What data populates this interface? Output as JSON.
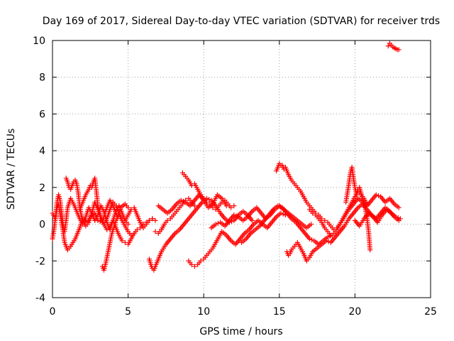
{
  "chart_data": {
    "type": "scatter",
    "title": "Day 169 of 2017, Sidereal Day-to-day VTEC variation (SDTVAR) for receiver trds",
    "xlabel": "GPS time / hours",
    "ylabel": "SDTVAR / TECUs",
    "xlim": [
      0,
      25
    ],
    "ylim": [
      -4,
      10
    ],
    "xticks": [
      0,
      5,
      10,
      15,
      20,
      25
    ],
    "yticks": [
      -4,
      -2,
      0,
      2,
      4,
      6,
      8,
      10
    ],
    "xtick_labels": [
      "0",
      "5",
      "10",
      "15",
      "20",
      "25"
    ],
    "ytick_labels": [
      "-4",
      "-2",
      "0",
      "2",
      "4",
      "6",
      "8",
      "10"
    ],
    "grid": true,
    "marker": "plus",
    "color": "#ff0000",
    "series": [
      {
        "name": "s1",
        "x": [
          0.0,
          0.2,
          0.3,
          0.4,
          0.5,
          0.6,
          0.7,
          0.8,
          1.0,
          1.2,
          1.5,
          1.8,
          2.0,
          2.3,
          2.5,
          2.8,
          3.0,
          3.3,
          3.5,
          3.8,
          4.0,
          4.3,
          4.5,
          4.8,
          5.0
        ],
        "y": [
          0.6,
          0.3,
          0.9,
          1.1,
          0.6,
          0.1,
          -0.4,
          -1.0,
          -1.4,
          -1.2,
          -0.8,
          -0.2,
          0.3,
          0.1,
          0.4,
          0.6,
          0.2,
          0.1,
          0.7,
          1.3,
          1.0,
          0.4,
          0.9,
          1.1,
          0.9
        ]
      },
      {
        "name": "s2",
        "x": [
          0.0,
          0.1,
          0.2,
          0.3,
          0.4,
          0.5,
          0.6,
          0.7,
          0.8,
          0.9,
          1.0,
          1.2,
          1.4,
          1.6,
          1.8,
          2.0,
          2.2,
          2.4,
          2.6,
          2.8,
          3.0,
          3.2,
          3.4,
          3.6,
          3.8,
          4.0,
          4.2,
          4.4,
          4.6,
          4.8,
          5.0
        ],
        "y": [
          -0.8,
          -0.3,
          0.4,
          1.2,
          1.6,
          1.3,
          0.6,
          0.0,
          -0.4,
          0.2,
          0.9,
          1.4,
          1.1,
          0.7,
          0.3,
          0.0,
          0.4,
          0.9,
          0.6,
          0.2,
          0.5,
          1.0,
          0.7,
          0.1,
          -0.3,
          0.2,
          0.7,
          1.0,
          0.6,
          0.2,
          0.0
        ]
      },
      {
        "name": "s3",
        "x": [
          0.9,
          1.0,
          1.1,
          1.2,
          1.3,
          1.4,
          1.5,
          1.6,
          1.7,
          1.8,
          1.9,
          2.0,
          2.2,
          2.4,
          2.6,
          2.8,
          3.0,
          3.2,
          3.4,
          3.6,
          3.8,
          4.0,
          4.2,
          4.4,
          4.6,
          4.8,
          5.0,
          5.2,
          5.4
        ],
        "y": [
          2.5,
          2.3,
          2.0,
          1.9,
          2.1,
          2.3,
          2.4,
          2.2,
          1.7,
          1.0,
          0.5,
          0.2,
          -0.1,
          0.1,
          0.6,
          1.2,
          0.8,
          0.3,
          0.0,
          -0.3,
          -0.1,
          0.2,
          -0.2,
          -0.6,
          -0.9,
          -1.0,
          -1.1,
          -0.8,
          -0.5
        ]
      },
      {
        "name": "s4",
        "x": [
          1.8,
          2.0,
          2.2,
          2.4,
          2.5,
          2.6,
          2.7,
          2.8,
          2.9,
          3.0,
          3.2,
          3.4,
          3.6,
          3.8,
          4.0,
          4.2,
          4.4,
          4.6,
          4.8,
          5.0,
          5.2,
          5.4,
          5.6,
          5.8,
          6.0,
          6.2,
          6.4,
          6.6,
          6.8
        ],
        "y": [
          0.8,
          1.2,
          1.6,
          1.9,
          2.1,
          2.0,
          2.3,
          2.5,
          1.8,
          1.0,
          0.4,
          0.0,
          0.3,
          0.8,
          1.2,
          1.0,
          0.6,
          0.3,
          0.2,
          0.5,
          0.8,
          0.9,
          0.5,
          0.1,
          -0.2,
          0.0,
          0.2,
          0.3,
          0.2
        ]
      },
      {
        "name": "s5",
        "x": [
          3.3,
          3.4,
          3.5,
          3.6,
          3.7,
          3.8,
          3.9,
          4.0,
          4.1,
          4.2,
          4.4,
          4.6,
          4.8,
          5.0,
          5.2,
          5.4,
          5.6,
          5.8,
          6.0,
          6.2,
          6.4,
          6.6
        ],
        "y": [
          -2.3,
          -2.5,
          -2.2,
          -1.8,
          -1.4,
          -1.0,
          -0.6,
          -0.3,
          -0.1,
          0.2,
          0.5,
          0.2,
          -0.1,
          -0.4,
          -0.6,
          -0.5,
          -0.3,
          -0.2,
          0.0,
          0.1,
          0.2,
          0.3
        ]
      },
      {
        "name": "s6",
        "x": [
          6.4,
          6.5,
          6.6,
          6.7,
          6.8,
          7.0,
          7.2,
          7.5,
          7.8,
          8.1,
          8.4,
          8.7,
          9.0,
          9.3,
          9.6,
          9.9,
          10.2,
          10.5,
          10.8,
          11.1,
          11.4,
          11.7,
          12.0,
          12.3,
          12.6,
          12.9,
          13.2
        ],
        "y": [
          -1.9,
          -2.2,
          -2.4,
          -2.5,
          -2.3,
          -1.9,
          -1.5,
          -1.1,
          -0.8,
          -0.5,
          -0.3,
          0.0,
          0.3,
          0.6,
          0.9,
          1.2,
          1.4,
          1.3,
          1.0,
          0.6,
          0.3,
          0.1,
          0.2,
          0.5,
          0.7,
          0.5,
          0.2
        ]
      },
      {
        "name": "s7",
        "x": [
          7.0,
          7.3,
          7.6,
          7.9,
          8.2,
          8.5,
          8.8,
          9.1,
          9.4,
          9.7,
          10.0,
          10.3,
          10.6,
          10.9,
          11.2,
          11.5
        ],
        "y": [
          1.0,
          0.8,
          0.6,
          0.8,
          1.1,
          1.3,
          1.2,
          1.0,
          1.3,
          1.6,
          1.3,
          0.9,
          1.1,
          1.6,
          1.4,
          1.0
        ]
      },
      {
        "name": "s8",
        "x": [
          6.8,
          7.0,
          7.2,
          7.4,
          7.6,
          7.8,
          8.0,
          8.2,
          8.4,
          8.6,
          8.8,
          9.0,
          9.2,
          9.4
        ],
        "y": [
          -0.4,
          -0.5,
          -0.3,
          0.0,
          0.2,
          0.3,
          0.5,
          0.7,
          0.9,
          1.1,
          1.3,
          1.4,
          1.2,
          1.0
        ]
      },
      {
        "name": "s9",
        "x": [
          8.6,
          8.8,
          9.0,
          9.2,
          9.4,
          9.6,
          9.8,
          10.0,
          10.2,
          10.4,
          10.6,
          10.8,
          11.0,
          11.2,
          11.4,
          11.6,
          11.8,
          12.0
        ],
        "y": [
          2.8,
          2.6,
          2.4,
          2.1,
          2.2,
          1.9,
          1.6,
          1.4,
          1.2,
          1.1,
          0.9,
          0.8,
          1.0,
          1.2,
          1.3,
          1.1,
          0.9,
          1.0
        ]
      },
      {
        "name": "s10",
        "x": [
          9.0,
          9.2,
          9.4,
          9.6,
          9.8,
          10.0,
          10.2,
          10.4,
          10.6,
          10.8,
          11.0,
          11.2,
          11.5,
          11.8,
          12.1,
          12.4,
          12.7,
          13.0,
          13.3,
          13.6,
          13.9,
          14.2,
          14.5,
          14.8,
          15.1,
          15.4
        ],
        "y": [
          -2.0,
          -2.2,
          -2.3,
          -2.2,
          -2.0,
          -1.9,
          -1.7,
          -1.5,
          -1.3,
          -1.0,
          -0.7,
          -0.4,
          -0.6,
          -0.9,
          -1.1,
          -0.8,
          -0.5,
          -0.3,
          0.0,
          0.2,
          0.0,
          -0.2,
          0.1,
          0.4,
          0.6,
          0.5
        ]
      },
      {
        "name": "s11",
        "x": [
          10.5,
          10.8,
          11.1,
          11.4,
          11.7,
          12.0,
          12.3,
          12.6,
          12.9,
          13.2,
          13.5,
          13.8,
          14.1,
          14.4,
          14.7,
          15.0,
          15.3,
          15.6,
          15.9,
          16.2,
          16.5,
          16.8,
          17.1
        ],
        "y": [
          -0.2,
          0.0,
          0.1,
          -0.1,
          0.2,
          0.5,
          0.4,
          0.2,
          0.4,
          0.7,
          0.9,
          0.6,
          0.3,
          0.5,
          0.8,
          1.0,
          0.8,
          0.6,
          0.4,
          0.2,
          0.0,
          -0.2,
          0.0
        ]
      },
      {
        "name": "s12",
        "x": [
          12.5,
          12.8,
          13.1,
          13.4,
          13.7,
          14.0,
          14.3,
          14.6,
          14.9,
          15.2,
          15.5,
          15.8,
          16.1,
          16.4,
          16.7,
          17.0,
          17.3,
          17.6,
          17.9,
          18.2,
          18.5
        ],
        "y": [
          -1.0,
          -0.8,
          -0.5,
          -0.3,
          -0.1,
          0.2,
          0.5,
          0.8,
          1.0,
          0.9,
          0.6,
          0.3,
          0.1,
          -0.2,
          -0.5,
          -0.8,
          -0.9,
          -1.1,
          -0.9,
          -0.7,
          -0.6
        ]
      },
      {
        "name": "s13",
        "x": [
          14.8,
          14.9,
          15.0,
          15.1,
          15.2,
          15.3,
          15.4,
          15.5,
          15.6,
          15.8,
          16.0,
          16.2,
          16.4,
          16.6,
          16.8,
          17.0,
          17.2,
          17.4,
          17.6,
          17.8,
          18.0,
          18.2,
          18.4,
          18.6,
          18.8,
          19.0
        ],
        "y": [
          2.9,
          3.1,
          3.3,
          3.2,
          3.2,
          3.0,
          3.1,
          2.9,
          2.7,
          2.4,
          2.2,
          2.0,
          1.8,
          1.5,
          1.2,
          1.0,
          0.8,
          0.6,
          0.5,
          0.3,
          0.2,
          0.1,
          -0.1,
          -0.3,
          -0.2,
          0.0
        ]
      },
      {
        "name": "s14",
        "x": [
          15.5,
          15.6,
          15.7,
          15.8,
          16.0,
          16.2,
          16.4,
          16.6,
          16.8,
          17.0,
          17.2,
          17.5,
          17.8,
          18.1,
          18.4,
          18.7,
          19.0,
          19.3,
          19.6,
          19.9,
          20.2,
          20.5,
          20.8,
          21.1,
          21.4,
          21.7,
          22.0,
          22.3,
          22.6,
          22.9
        ],
        "y": [
          -1.5,
          -1.7,
          -1.6,
          -1.4,
          -1.2,
          -1.0,
          -1.3,
          -1.6,
          -2.0,
          -1.8,
          -1.5,
          -1.3,
          -1.1,
          -0.9,
          -1.0,
          -0.7,
          -0.4,
          -0.1,
          0.3,
          0.6,
          0.9,
          1.1,
          0.8,
          0.5,
          0.3,
          0.6,
          0.9,
          0.7,
          0.4,
          0.2
        ]
      },
      {
        "name": "s15",
        "x": [
          17.0,
          17.2,
          17.4,
          17.6,
          17.8,
          18.0,
          18.2,
          18.4,
          18.6,
          18.8,
          19.0,
          19.2,
          19.4,
          19.6,
          19.8,
          20.0,
          20.2,
          20.4,
          20.6,
          20.8
        ],
        "y": [
          0.8,
          0.6,
          0.5,
          0.3,
          0.1,
          -0.2,
          -0.4,
          -0.6,
          -0.5,
          -0.3,
          0.0,
          0.3,
          0.6,
          0.9,
          1.2,
          1.5,
          1.8,
          1.6,
          1.4,
          1.1
        ]
      },
      {
        "name": "s16",
        "x": [
          19.4,
          19.5,
          19.6,
          19.7,
          19.8,
          19.9,
          20.0,
          20.1,
          20.2,
          20.3,
          20.4,
          20.5,
          20.6,
          20.7,
          20.8,
          20.9,
          21.0
        ],
        "y": [
          1.2,
          1.7,
          2.2,
          2.8,
          3.1,
          2.5,
          2.0,
          1.6,
          1.9,
          2.0,
          1.7,
          1.4,
          1.1,
          0.8,
          0.3,
          -0.4,
          -1.4
        ]
      },
      {
        "name": "s17",
        "x": [
          19.0,
          19.3,
          19.6,
          19.9,
          20.2,
          20.5,
          20.8,
          21.1,
          21.4,
          21.7,
          22.0,
          22.3,
          22.6,
          22.9
        ],
        "y": [
          0.0,
          0.4,
          0.8,
          1.1,
          1.4,
          1.2,
          1.0,
          1.3,
          1.6,
          1.5,
          1.2,
          1.4,
          1.1,
          0.9
        ]
      },
      {
        "name": "s18",
        "x": [
          20.0,
          20.3,
          20.6,
          20.9,
          21.2,
          21.5,
          21.8,
          22.1,
          22.4,
          22.7,
          23.0
        ],
        "y": [
          0.2,
          -0.1,
          0.3,
          0.6,
          0.4,
          0.1,
          0.5,
          0.8,
          0.6,
          0.4,
          0.3
        ]
      },
      {
        "name": "s19",
        "x": [
          22.2,
          22.3,
          22.4,
          22.5,
          22.6,
          22.7,
          22.8,
          22.9
        ],
        "y": [
          9.7,
          9.85,
          9.75,
          9.65,
          9.6,
          9.55,
          9.5,
          9.5
        ]
      }
    ]
  }
}
